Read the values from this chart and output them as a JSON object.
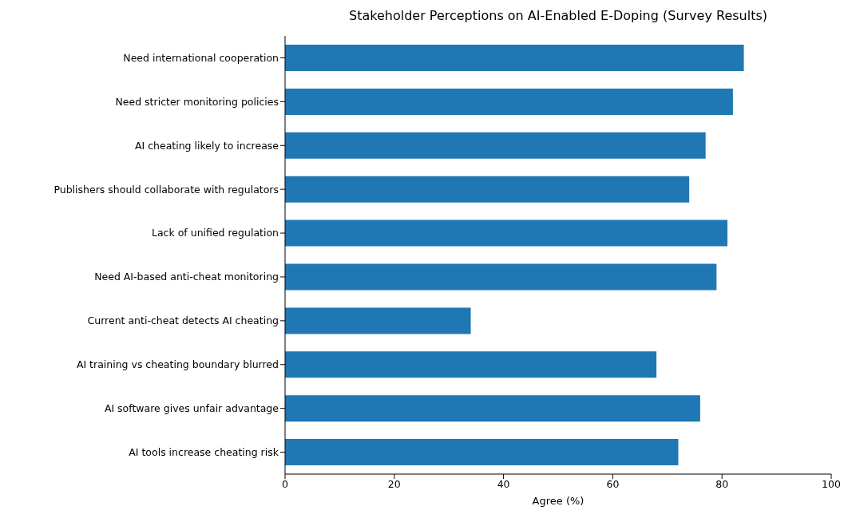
{
  "chart_data": {
    "type": "bar",
    "orientation": "horizontal",
    "title": "Stakeholder Perceptions on AI-Enabled E-Doping (Survey Results)",
    "xlabel": "Agree (%)",
    "categories": [
      "Need international cooperation",
      "Need stricter monitoring policies",
      "AI cheating likely to increase",
      "Publishers should collaborate with regulators",
      "Lack of unified regulation",
      "Need AI-based anti-cheat monitoring",
      "Current anti-cheat detects AI cheating",
      "AI training vs cheating boundary blurred",
      "AI software gives unfair advantage",
      "AI tools increase cheating risk"
    ],
    "values": [
      84,
      82,
      77,
      74,
      81,
      79,
      34,
      68,
      76,
      72
    ],
    "color": "#1f77b4",
    "xlim": [
      0,
      100
    ],
    "xticks": [
      0,
      20,
      40,
      60,
      80,
      100
    ],
    "grid": false,
    "legend": false
  }
}
